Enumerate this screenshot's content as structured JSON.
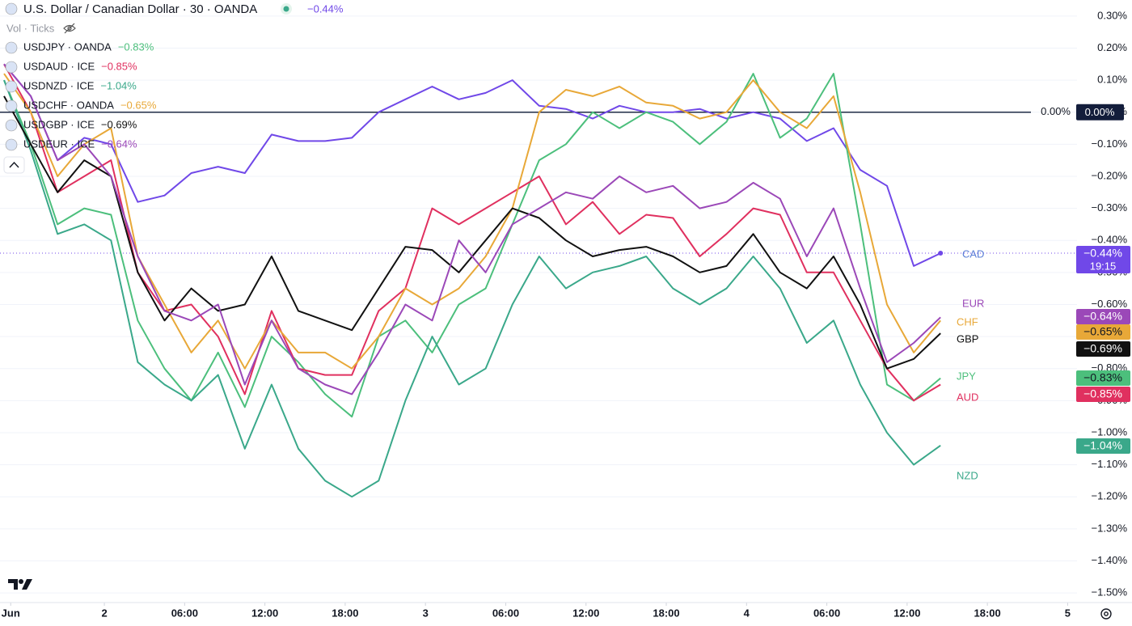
{
  "chart_data": {
    "type": "line",
    "indicator_label": "Vol · Ticks",
    "x": [
      -7.5,
      -5.5,
      -3.5,
      -1.5,
      0.5,
      2.5,
      4.5,
      6.5,
      8.5,
      10.5,
      12.5,
      14.5,
      16.5,
      18.5,
      20.5,
      22.5,
      24.5,
      26.5,
      28.5,
      30.5,
      32.5,
      34.5,
      36.5,
      38.5,
      40.5,
      42.5,
      44.5,
      46.5,
      48.5,
      50.5,
      52.5,
      54.5,
      56.5,
      58.5,
      60.5,
      62.5
    ],
    "xlim": [
      -7.8,
      72.7
    ],
    "xticks": [
      {
        "value": -7,
        "label": "Jun"
      },
      {
        "value": 0,
        "label": "2"
      },
      {
        "value": 6,
        "label": "06:00"
      },
      {
        "value": 12,
        "label": "12:00"
      },
      {
        "value": 18,
        "label": "18:00"
      },
      {
        "value": 24,
        "label": "3"
      },
      {
        "value": 30,
        "label": "06:00"
      },
      {
        "value": 36,
        "label": "12:00"
      },
      {
        "value": 42,
        "label": "18:00"
      },
      {
        "value": 48,
        "label": "4"
      },
      {
        "value": 54,
        "label": "06:00"
      },
      {
        "value": 60,
        "label": "12:00"
      },
      {
        "value": 66,
        "label": "18:00"
      },
      {
        "value": 72,
        "label": "5"
      }
    ],
    "ylim": [
      -1.53,
      0.35
    ],
    "yticks": [
      {
        "value": 0.3,
        "label": "0.30%"
      },
      {
        "value": 0.2,
        "label": "0.20%"
      },
      {
        "value": 0.1,
        "label": "0.10%"
      },
      {
        "value": 0,
        "label": "0.00%"
      },
      {
        "value": -0.1,
        "label": "−0.10%"
      },
      {
        "value": -0.2,
        "label": "−0.20%"
      },
      {
        "value": -0.3,
        "label": "−0.30%"
      },
      {
        "value": -0.4,
        "label": "−0.40%"
      },
      {
        "value": -0.5,
        "label": "−0.50%"
      },
      {
        "value": -0.6,
        "label": "−0.60%"
      },
      {
        "value": -0.7,
        "label": "−0.70%"
      },
      {
        "value": -0.8,
        "label": "−0.80%"
      },
      {
        "value": -0.9,
        "label": "−0.90%"
      },
      {
        "value": -1.0,
        "label": "−1.00%"
      },
      {
        "value": -1.1,
        "label": "−1.10%"
      },
      {
        "value": -1.2,
        "label": "−1.20%"
      },
      {
        "value": -1.3,
        "label": "−1.30%"
      },
      {
        "value": -1.4,
        "label": "−1.40%"
      },
      {
        "value": -1.5,
        "label": "−1.50%"
      }
    ],
    "baseline": {
      "value": 0,
      "label": "0.00%"
    },
    "series": [
      {
        "name": "U.S. Dollar / Canadian Dollar · 30 · OANDA",
        "short_name": "CAD",
        "color": "#7048e8",
        "change_label": "−0.44%",
        "countdown": "19:15",
        "values": [
          0.15,
          0.05,
          -0.15,
          -0.08,
          -0.1,
          -0.28,
          -0.26,
          -0.19,
          -0.17,
          -0.19,
          -0.07,
          -0.09,
          -0.09,
          -0.08,
          0.0,
          0.04,
          0.08,
          0.04,
          0.06,
          0.1,
          0.02,
          0.01,
          -0.02,
          0.02,
          0.0,
          0.0,
          0.01,
          -0.02,
          0.0,
          -0.02,
          -0.09,
          -0.05,
          -0.18,
          -0.23,
          -0.48,
          -0.44
        ]
      },
      {
        "name": "USDJPY · OANDA",
        "short_name": "JPY",
        "color": "#4cbf7c",
        "change_label": "−0.83%",
        "values": [
          0.1,
          -0.1,
          -0.35,
          -0.3,
          -0.32,
          -0.65,
          -0.8,
          -0.9,
          -0.75,
          -0.92,
          -0.7,
          -0.78,
          -0.88,
          -0.95,
          -0.7,
          -0.65,
          -0.75,
          -0.6,
          -0.55,
          -0.35,
          -0.15,
          -0.1,
          0.0,
          -0.05,
          0.0,
          -0.03,
          -0.1,
          -0.03,
          0.12,
          -0.08,
          -0.02,
          0.12,
          -0.35,
          -0.85,
          -0.9,
          -0.83
        ]
      },
      {
        "name": "USDAUD · ICE",
        "short_name": "AUD",
        "color": "#e0305f",
        "change_label": "−0.85%",
        "values": [
          0.15,
          0.0,
          -0.25,
          -0.2,
          -0.15,
          -0.5,
          -0.62,
          -0.6,
          -0.7,
          -0.88,
          -0.62,
          -0.8,
          -0.82,
          -0.82,
          -0.62,
          -0.55,
          -0.3,
          -0.35,
          -0.3,
          -0.25,
          -0.2,
          -0.35,
          -0.28,
          -0.38,
          -0.32,
          -0.33,
          -0.45,
          -0.38,
          -0.3,
          -0.32,
          -0.5,
          -0.5,
          -0.65,
          -0.8,
          -0.9,
          -0.85
        ]
      },
      {
        "name": "USDNZD · ICE",
        "short_name": "NZD",
        "color": "#3aa88a",
        "change_label": "−1.04%",
        "values": [
          0.1,
          -0.12,
          -0.38,
          -0.35,
          -0.4,
          -0.78,
          -0.85,
          -0.9,
          -0.82,
          -1.05,
          -0.85,
          -1.05,
          -1.15,
          -1.2,
          -1.15,
          -0.9,
          -0.7,
          -0.85,
          -0.8,
          -0.6,
          -0.45,
          -0.55,
          -0.5,
          -0.48,
          -0.45,
          -0.55,
          -0.6,
          -0.55,
          -0.45,
          -0.55,
          -0.72,
          -0.65,
          -0.85,
          -1.0,
          -1.1,
          -1.04
        ]
      },
      {
        "name": "USDCHF · OANDA",
        "short_name": "CHF",
        "color": "#e8a838",
        "change_label": "−0.65%",
        "values": [
          0.12,
          0.0,
          -0.2,
          -0.1,
          -0.05,
          -0.45,
          -0.6,
          -0.75,
          -0.65,
          -0.8,
          -0.65,
          -0.75,
          -0.75,
          -0.8,
          -0.7,
          -0.55,
          -0.6,
          -0.55,
          -0.45,
          -0.3,
          0.0,
          0.07,
          0.05,
          0.08,
          0.03,
          0.02,
          -0.02,
          0.0,
          0.1,
          0.0,
          -0.05,
          0.05,
          -0.25,
          -0.6,
          -0.75,
          -0.65
        ]
      },
      {
        "name": "USDGBP · ICE",
        "short_name": "GBP",
        "color": "#111111",
        "change_label": "−0.69%",
        "values": [
          0.05,
          -0.1,
          -0.25,
          -0.15,
          -0.2,
          -0.5,
          -0.65,
          -0.55,
          -0.62,
          -0.6,
          -0.45,
          -0.62,
          -0.65,
          -0.68,
          -0.55,
          -0.42,
          -0.43,
          -0.5,
          -0.4,
          -0.3,
          -0.33,
          -0.4,
          -0.45,
          -0.43,
          -0.42,
          -0.45,
          -0.5,
          -0.48,
          -0.38,
          -0.5,
          -0.55,
          -0.45,
          -0.6,
          -0.8,
          -0.77,
          -0.69
        ]
      },
      {
        "name": "USDEUR · ICE",
        "short_name": "EUR",
        "color": "#9b48b8",
        "change_label": "−0.64%",
        "values": [
          0.15,
          0.05,
          -0.15,
          -0.1,
          -0.2,
          -0.45,
          -0.62,
          -0.65,
          -0.6,
          -0.85,
          -0.65,
          -0.8,
          -0.85,
          -0.88,
          -0.75,
          -0.6,
          -0.65,
          -0.4,
          -0.5,
          -0.35,
          -0.3,
          -0.25,
          -0.27,
          -0.2,
          -0.25,
          -0.23,
          -0.3,
          -0.28,
          -0.22,
          -0.27,
          -0.45,
          -0.3,
          -0.55,
          -0.78,
          -0.72,
          -0.64
        ]
      }
    ]
  }
}
